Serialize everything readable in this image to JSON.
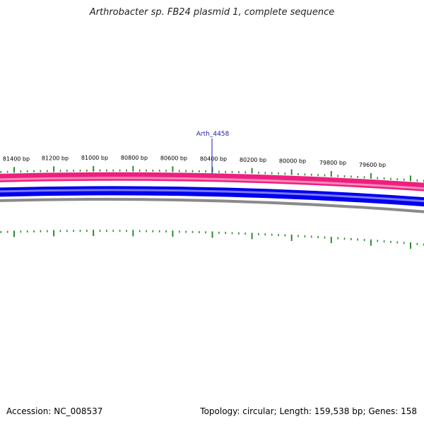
{
  "title": "Arthrobacter sp. FB24 plasmid 1, complete sequence",
  "footer": {
    "accession": "Accession: NC_008537",
    "summary": "Topology: circular; Length: 159,538 bp; Genes: 158"
  },
  "map": {
    "ticks": [
      {
        "label": "81400 bp"
      },
      {
        "label": "81200 bp"
      },
      {
        "label": "81000 bp"
      },
      {
        "label": "80800 bp"
      },
      {
        "label": "80600 bp"
      },
      {
        "label": "80400 bp"
      },
      {
        "label": "80200 bp"
      },
      {
        "label": "80000 bp"
      },
      {
        "label": "79800 bp"
      },
      {
        "label": "79600 bp"
      }
    ],
    "gene_label": "Arth_4458",
    "colors": {
      "forward_cds": "#ee1f7f",
      "forward_cds_light": "#f58cb8",
      "reverse_cds": "#0000ee",
      "reverse_cds_light": "#7a7af5",
      "backbone": "#8a8a8a",
      "ticks": "#2e8b2e",
      "gene_label": "#1a1aa8"
    }
  }
}
